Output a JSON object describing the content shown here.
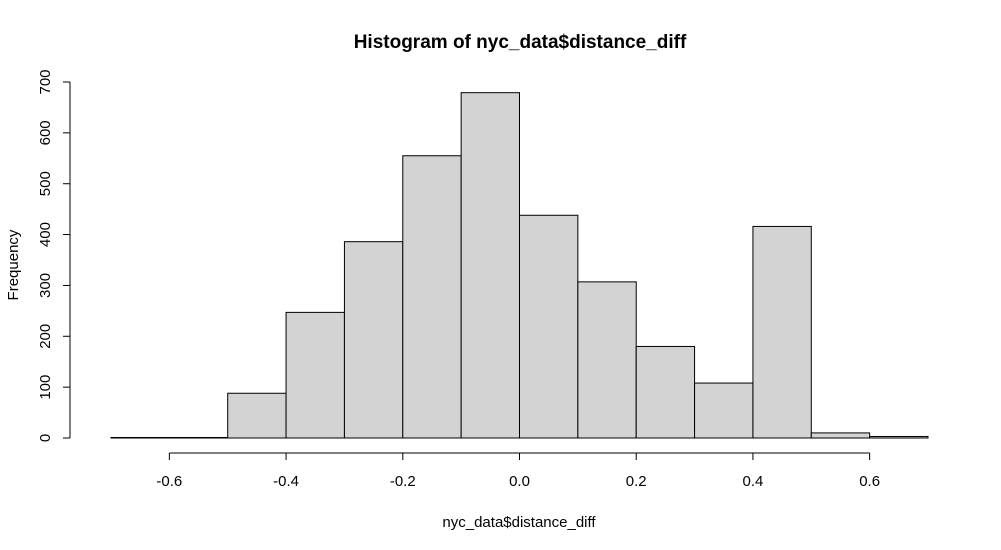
{
  "chart_data": {
    "type": "bar",
    "title": "Histogram of nyc_data$distance_diff",
    "xlabel": "nyc_data$distance_diff",
    "ylabel": "Frequency",
    "bins": [
      {
        "start": -0.7,
        "end": -0.6,
        "count": 1
      },
      {
        "start": -0.6,
        "end": -0.5,
        "count": 1
      },
      {
        "start": -0.5,
        "end": -0.4,
        "count": 88
      },
      {
        "start": -0.4,
        "end": -0.3,
        "count": 247
      },
      {
        "start": -0.3,
        "end": -0.2,
        "count": 386
      },
      {
        "start": -0.2,
        "end": -0.1,
        "count": 555
      },
      {
        "start": -0.1,
        "end": 0.0,
        "count": 679
      },
      {
        "start": 0.0,
        "end": 0.1,
        "count": 438
      },
      {
        "start": 0.1,
        "end": 0.2,
        "count": 307
      },
      {
        "start": 0.2,
        "end": 0.3,
        "count": 180
      },
      {
        "start": 0.3,
        "end": 0.4,
        "count": 108
      },
      {
        "start": 0.4,
        "end": 0.5,
        "count": 416
      },
      {
        "start": 0.5,
        "end": 0.6,
        "count": 10
      },
      {
        "start": 0.6,
        "end": 0.7,
        "count": 3
      }
    ],
    "xlim": [
      -0.7,
      0.7
    ],
    "ylim": [
      0,
      700
    ],
    "x_ticks": [
      "-0.6",
      "-0.4",
      "-0.2",
      "0.0",
      "0.2",
      "0.4",
      "0.6"
    ],
    "x_tick_values": [
      -0.6,
      -0.4,
      -0.2,
      0.0,
      0.2,
      0.4,
      0.6
    ],
    "y_ticks": [
      "0",
      "100",
      "200",
      "300",
      "400",
      "500",
      "600",
      "700"
    ],
    "y_tick_values": [
      0,
      100,
      200,
      300,
      400,
      500,
      600,
      700
    ],
    "bar_color": "#d3d3d3",
    "grid": false,
    "legend": false
  }
}
